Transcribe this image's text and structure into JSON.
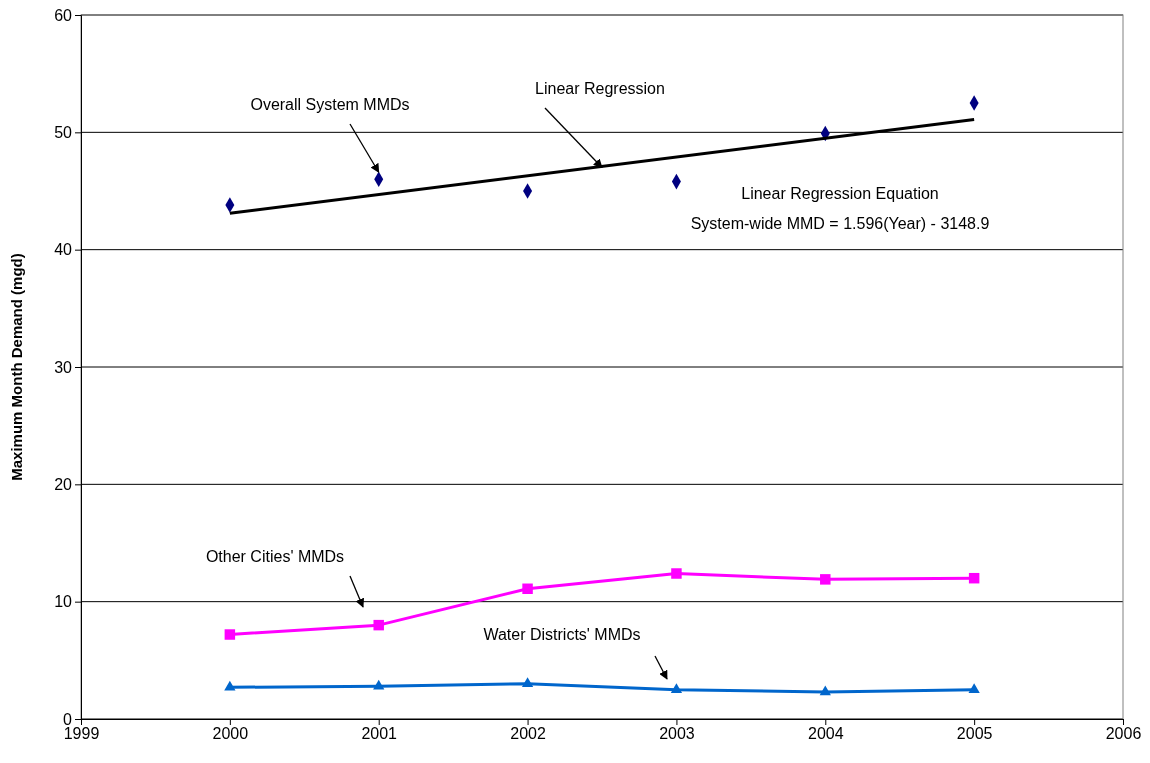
{
  "chart_data": {
    "type": "line",
    "ylabel": "Maximum Month Demand (mgd)",
    "xlim": [
      1999,
      2006
    ],
    "xticks": [
      1999,
      2000,
      2001,
      2002,
      2003,
      2004,
      2005,
      2006
    ],
    "ylim": [
      0,
      60
    ],
    "yticks": [
      0,
      10,
      20,
      30,
      40,
      50,
      60
    ],
    "grid": "y",
    "x": [
      2000,
      2001,
      2002,
      2003,
      2004,
      2005
    ],
    "series": [
      {
        "type": "scatter",
        "color": "#000080",
        "marker": "diamond",
        "values": [
          43.8,
          46.0,
          45.0,
          45.8,
          49.9,
          52.5
        ]
      },
      {
        "color": "#000000",
        "marker": "none",
        "x": [
          2000,
          2005
        ],
        "values": [
          43.1,
          51.1
        ]
      },
      {
        "color": "#ff00ff",
        "marker": "square",
        "values": [
          7.2,
          8.0,
          11.1,
          12.4,
          11.9,
          12.0
        ]
      },
      {
        "color": "#0066cc",
        "marker": "triangle",
        "values": [
          2.7,
          2.8,
          3.0,
          2.5,
          2.3,
          2.5
        ]
      }
    ],
    "annotations": [
      {
        "text": "Overall System MMDs",
        "x": 2001,
        "y": 46.6
      },
      {
        "text": "Linear Regression",
        "x": 2002.5,
        "y": 47.0
      },
      "Linear Regression Equation",
      "System-wide MMD = 1.596(Year) - 3148.9",
      "Other Cities' MMDs",
      "Water Districts' MMDs"
    ]
  }
}
